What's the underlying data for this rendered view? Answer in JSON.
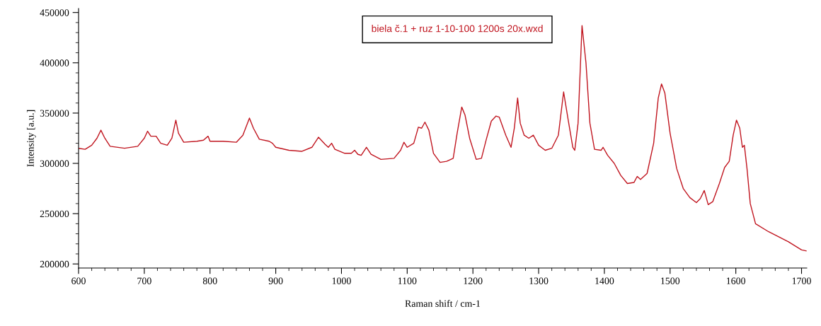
{
  "chart_data": {
    "type": "line",
    "xlabel": "Raman shift / cm-1",
    "ylabel": "Intensity [a.u.]",
    "legend": "top",
    "grid": false,
    "marker": "none",
    "line_style": "solid",
    "xlim": [
      600,
      1708
    ],
    "xticks": [
      600,
      700,
      800,
      900,
      1000,
      1100,
      1200,
      1300,
      1400,
      1500,
      1600,
      1700
    ],
    "ylim": [
      196000,
      454000
    ],
    "yticks": [
      200000,
      250000,
      300000,
      350000,
      400000,
      450000
    ],
    "series": [
      {
        "name": "biela č.1 + ruz 1-10-100 1200s 20x.wxd",
        "color": "#c0141e",
        "x": [
          600,
          610,
          620,
          628,
          634,
          640,
          648,
          670,
          690,
          700,
          705,
          710,
          718,
          725,
          735,
          742,
          748,
          752,
          760,
          780,
          790,
          797,
          800,
          820,
          840,
          850,
          860,
          866,
          875,
          890,
          895,
          900,
          920,
          940,
          955,
          965,
          975,
          980,
          985,
          990,
          1005,
          1015,
          1020,
          1025,
          1030,
          1038,
          1045,
          1060,
          1080,
          1090,
          1095,
          1100,
          1110,
          1117,
          1122,
          1127,
          1133,
          1140,
          1150,
          1160,
          1170,
          1176,
          1183,
          1188,
          1195,
          1205,
          1213,
          1220,
          1228,
          1235,
          1240,
          1250,
          1258,
          1263,
          1268,
          1272,
          1278,
          1285,
          1292,
          1300,
          1310,
          1320,
          1330,
          1338,
          1345,
          1352,
          1355,
          1360,
          1366,
          1372,
          1378,
          1385,
          1395,
          1398,
          1405,
          1415,
          1425,
          1435,
          1445,
          1450,
          1455,
          1465,
          1475,
          1482,
          1487,
          1492,
          1500,
          1510,
          1520,
          1530,
          1540,
          1546,
          1552,
          1558,
          1565,
          1575,
          1583,
          1590,
          1596,
          1601,
          1606,
          1610,
          1613,
          1617,
          1622,
          1630,
          1650,
          1680,
          1700,
          1707
        ],
        "values": [
          315000,
          314000,
          318000,
          325000,
          333000,
          325000,
          317000,
          315000,
          317000,
          325000,
          332000,
          327000,
          327000,
          320000,
          318000,
          325000,
          343000,
          330000,
          321000,
          322000,
          323000,
          327000,
          322000,
          322000,
          321000,
          328000,
          345000,
          335000,
          324000,
          322000,
          320000,
          316000,
          313000,
          312000,
          316000,
          326000,
          319000,
          316000,
          320000,
          314000,
          310000,
          310000,
          313000,
          309000,
          308000,
          316000,
          309000,
          304000,
          305000,
          313000,
          321000,
          316000,
          320000,
          336000,
          335000,
          341000,
          333000,
          310000,
          301000,
          302000,
          305000,
          330000,
          356000,
          348000,
          325000,
          304000,
          305000,
          323000,
          342000,
          347000,
          346000,
          328000,
          316000,
          335000,
          365000,
          340000,
          328000,
          325000,
          328000,
          318000,
          313000,
          315000,
          328000,
          371000,
          343000,
          316000,
          313000,
          340000,
          437000,
          400000,
          340000,
          314000,
          313000,
          316000,
          308000,
          300000,
          288000,
          280000,
          281000,
          287000,
          284000,
          290000,
          320000,
          365000,
          379000,
          370000,
          330000,
          295000,
          275000,
          266000,
          261000,
          265000,
          273000,
          259000,
          262000,
          280000,
          296000,
          302000,
          328000,
          343000,
          335000,
          316000,
          318000,
          295000,
          260000,
          240000,
          232000,
          222000,
          214000,
          213000
        ]
      }
    ]
  }
}
